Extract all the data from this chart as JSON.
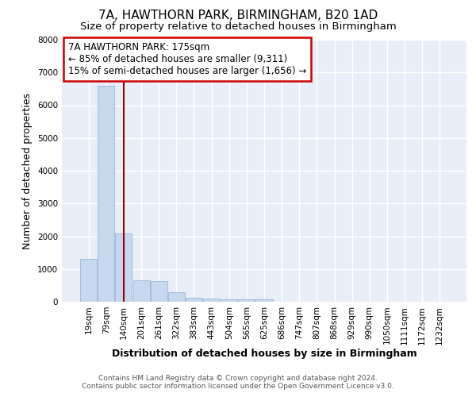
{
  "title": "7A, HAWTHORN PARK, BIRMINGHAM, B20 1AD",
  "subtitle": "Size of property relative to detached houses in Birmingham",
  "xlabel": "Distribution of detached houses by size in Birmingham",
  "ylabel": "Number of detached properties",
  "footer_line1": "Contains HM Land Registry data © Crown copyright and database right 2024.",
  "footer_line2": "Contains public sector information licensed under the Open Government Licence v3.0.",
  "bar_labels": [
    "19sqm",
    "79sqm",
    "140sqm",
    "201sqm",
    "261sqm",
    "322sqm",
    "383sqm",
    "443sqm",
    "504sqm",
    "565sqm",
    "625sqm",
    "686sqm",
    "747sqm",
    "807sqm",
    "868sqm",
    "929sqm",
    "990sqm",
    "1050sqm",
    "1111sqm",
    "1172sqm",
    "1232sqm"
  ],
  "bar_values": [
    1310,
    6600,
    2080,
    650,
    640,
    290,
    130,
    105,
    80,
    80,
    80,
    0,
    0,
    0,
    0,
    0,
    0,
    0,
    0,
    0,
    0
  ],
  "bar_color": "#c5d8ee",
  "bar_edge_color": "#9ab8d8",
  "background_color": "#e8eef8",
  "grid_color": "#ffffff",
  "vline_color": "#990000",
  "vline_x": 2.5,
  "annotation_text_line1": "7A HAWTHORN PARK: 175sqm",
  "annotation_text_line2": "← 85% of detached houses are smaller (9,311)",
  "annotation_text_line3": "15% of semi-detached houses are larger (1,656) →",
  "annotation_box_color": "#ffffff",
  "annotation_border_color": "#cc0000",
  "ylim": [
    0,
    8000
  ],
  "yticks": [
    0,
    1000,
    2000,
    3000,
    4000,
    5000,
    6000,
    7000,
    8000
  ],
  "title_fontsize": 11,
  "subtitle_fontsize": 9.5,
  "axis_label_fontsize": 9,
  "tick_fontsize": 7.5,
  "annotation_fontsize": 8.5,
  "footer_fontsize": 6.5
}
